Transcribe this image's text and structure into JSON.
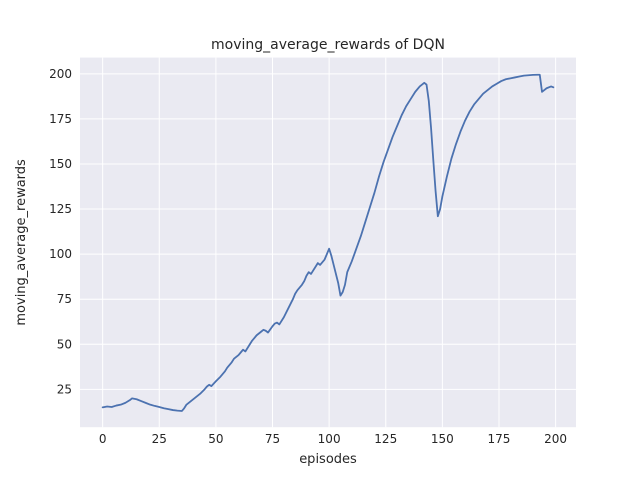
{
  "figure": {
    "background": "#ffffff"
  },
  "chart_data": {
    "type": "line",
    "title": "moving_average_rewards of DQN",
    "xlabel": "episodes",
    "ylabel": "moving_average_rewards",
    "x_ticks": [
      0,
      25,
      50,
      75,
      100,
      125,
      150,
      175,
      200
    ],
    "y_ticks": [
      25,
      50,
      75,
      100,
      125,
      150,
      175,
      200
    ],
    "xlim": [
      -10,
      209
    ],
    "ylim": [
      4,
      209
    ],
    "grid": true,
    "legend": "none",
    "plot_bg": "#eaeaf2",
    "grid_color": "#ffffff",
    "text_color": "#262626",
    "line_color": "#4c72b0",
    "series": [
      {
        "name": "moving_average_rewards",
        "x": [
          0,
          2,
          4,
          6,
          8,
          10,
          12,
          13,
          15,
          17,
          19,
          21,
          23,
          25,
          27,
          29,
          31,
          33,
          35,
          36,
          37,
          39,
          41,
          43,
          45,
          46,
          47,
          48,
          50,
          52,
          54,
          55,
          57,
          58,
          60,
          61,
          62,
          63,
          65,
          66,
          68,
          70,
          71,
          72,
          73,
          75,
          76,
          77,
          78,
          80,
          82,
          83,
          84,
          85,
          86,
          88,
          89,
          90,
          91,
          92,
          94,
          95,
          96,
          98,
          100,
          101,
          102,
          104,
          105,
          106,
          107,
          108,
          110,
          112,
          114,
          116,
          118,
          120,
          122,
          124,
          126,
          128,
          130,
          132,
          134,
          136,
          138,
          140,
          142,
          143,
          144,
          145,
          146,
          147,
          148,
          149,
          150,
          152,
          154,
          156,
          158,
          160,
          162,
          164,
          166,
          168,
          170,
          172,
          174,
          176,
          178,
          180,
          182,
          184,
          186,
          188,
          190,
          192,
          193,
          194,
          195,
          196,
          198,
          199
        ],
        "y": [
          15,
          15.5,
          15.2,
          16,
          16.5,
          17.5,
          19,
          20,
          19.5,
          18.5,
          17.5,
          16.5,
          15.8,
          15.2,
          14.5,
          14,
          13.5,
          13.2,
          13,
          14.5,
          16.5,
          18.5,
          20.5,
          22.5,
          25,
          26.5,
          27.5,
          26.8,
          29.5,
          32,
          35,
          37,
          40,
          42,
          44,
          45.5,
          47,
          46,
          50,
          52,
          55,
          57,
          58,
          57.5,
          56.5,
          60,
          61.5,
          62,
          61,
          65,
          70,
          72.5,
          75,
          78,
          80,
          83,
          85,
          88,
          90,
          89,
          93,
          95,
          94,
          97,
          103,
          99,
          94,
          84,
          77,
          79,
          83,
          90,
          96,
          103,
          110,
          118,
          126,
          134,
          143,
          151,
          158,
          165,
          171,
          177,
          182,
          186,
          190,
          193,
          195,
          194,
          185,
          170,
          152,
          135,
          121,
          125,
          132,
          143,
          153,
          161,
          168,
          174,
          179,
          183,
          186,
          189,
          191,
          193,
          194.5,
          196,
          197,
          197.5,
          198,
          198.5,
          199,
          199.2,
          199.4,
          199.5,
          199.5,
          190,
          191,
          192,
          193,
          192.5
        ]
      }
    ]
  }
}
